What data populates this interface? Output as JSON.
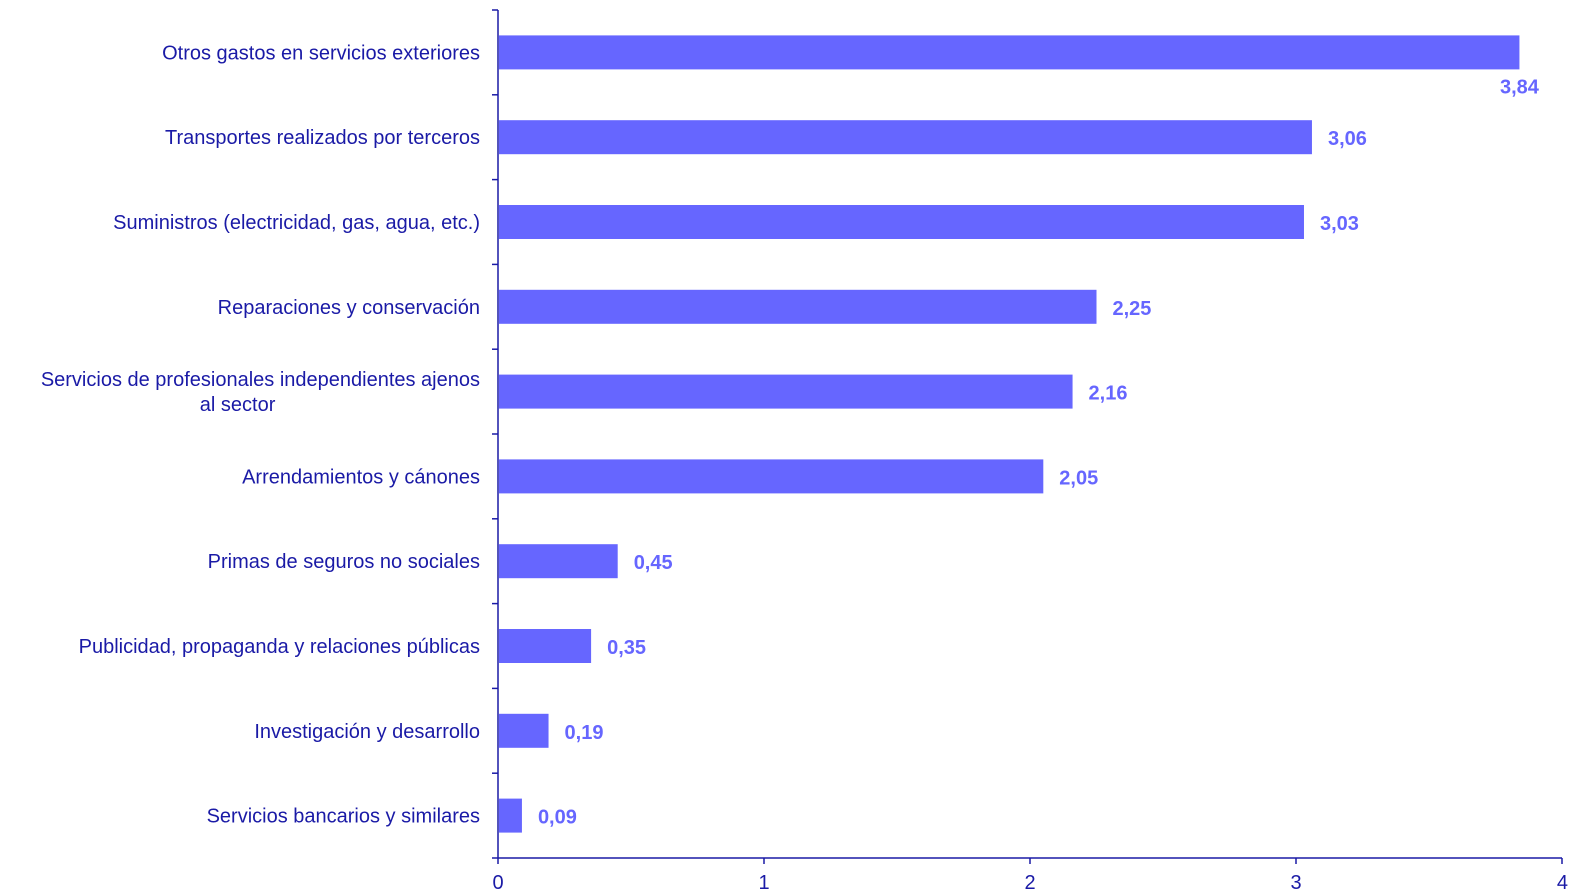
{
  "chart_data": {
    "type": "bar",
    "orientation": "horizontal",
    "title": "",
    "xlabel": "",
    "ylabel": "",
    "categories": [
      "Otros gastos en servicios exteriores",
      "Transportes realizados por terceros",
      "Suministros (electricidad, gas, agua, etc.)",
      "Reparaciones y conservación",
      "Servicios de profesionales independientes ajenos al sector",
      "Arrendamientos y cánones",
      "Primas de seguros no sociales",
      "Publicidad, propaganda y relaciones públicas",
      "Investigación y desarrollo",
      "Servicios bancarios y similares"
    ],
    "values": [
      3.84,
      3.06,
      3.03,
      2.25,
      2.16,
      2.05,
      0.45,
      0.35,
      0.19,
      0.09
    ],
    "value_labels": [
      "3,84",
      "3,06",
      "3,03",
      "2,25",
      "2,16",
      "2,05",
      "0,45",
      "0,35",
      "0,19",
      "0,09"
    ],
    "xlim": [
      0,
      4
    ],
    "x_ticks": [
      0,
      1,
      2,
      3,
      4
    ],
    "x_tick_labels": [
      "0",
      "1",
      "2",
      "3",
      "4"
    ],
    "grid": false,
    "legend": "none",
    "colors": {
      "bar": "#6666ff",
      "value_label": "#6666ff",
      "text": "#1a1aa6",
      "axis": "#1a1aa6"
    }
  }
}
